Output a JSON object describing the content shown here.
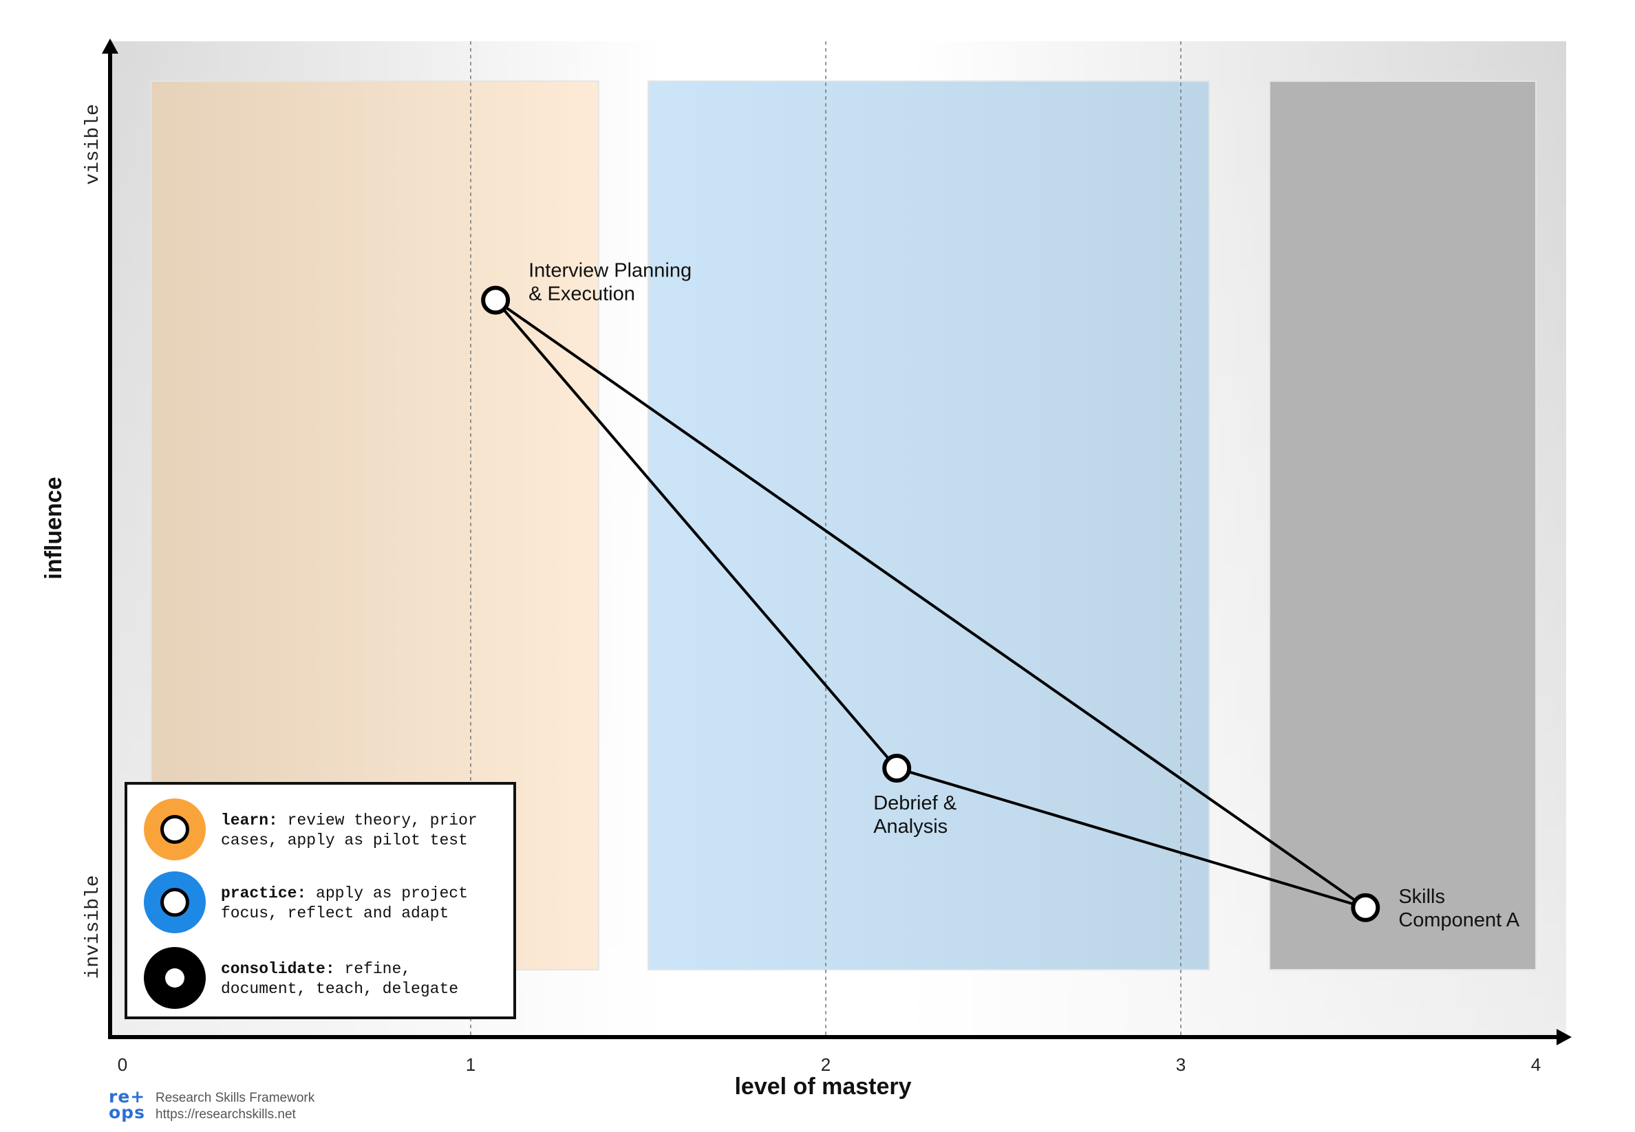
{
  "axes": {
    "x_label": "level of mastery",
    "y_label": "influence",
    "y_top_label": "visible",
    "y_bottom_label": "invisible",
    "x_ticks": [
      "0",
      "1",
      "2",
      "3",
      "4"
    ]
  },
  "zones": [
    {
      "name": "learn",
      "x_start": 0.1,
      "x_end": 1.36,
      "color": "#fde9d2"
    },
    {
      "name": "practice",
      "x_start": 1.5,
      "x_end": 3.08,
      "color": "#c4ddf0"
    },
    {
      "name": "consolidate",
      "x_start": 3.25,
      "x_end": 4.0,
      "color": "#b3b3b3"
    }
  ],
  "skills": [
    {
      "label_line1": "Interview Planning",
      "label_line2": "& Execution",
      "mastery": 1.07,
      "influence": 0.74
    },
    {
      "label_line1": "Debrief &",
      "label_line2": "Analysis",
      "mastery": 2.2,
      "influence": 0.27
    },
    {
      "label_line1": "Skills",
      "label_line2": "Component A",
      "mastery": 3.52,
      "influence": 0.13
    }
  ],
  "legend": [
    {
      "term": "learn:",
      "line1": " review theory, prior",
      "line2": "cases, apply as pilot test",
      "color": "#f9a43b"
    },
    {
      "term": "practice:",
      "line1": " apply as project",
      "line2": "focus, reflect and adapt",
      "color": "#1e88e5"
    },
    {
      "term": "consolidate:",
      "line1": " refine,",
      "line2": "document, teach, delegate",
      "color": "#000000"
    }
  ],
  "footer": {
    "brand_line1": "re+",
    "brand_line2": "ops",
    "title": "Research Skills Framework",
    "url": "https://researchskills.net"
  }
}
